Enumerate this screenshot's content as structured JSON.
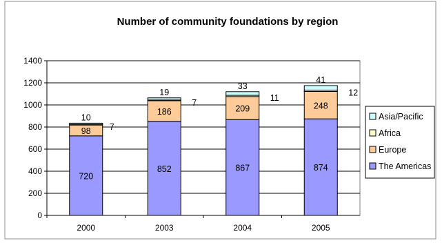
{
  "chart_data": {
    "type": "bar",
    "stacked": true,
    "title": "Number of community foundations by region",
    "xlabel": "",
    "ylabel": "",
    "categories": [
      "2000",
      "2003",
      "2004",
      "2005"
    ],
    "ylim": [
      0,
      1400
    ],
    "yticks": [
      0,
      200,
      400,
      600,
      800,
      1000,
      1200,
      1400
    ],
    "grid": "horizontal",
    "legend_position": "right",
    "series": [
      {
        "name": "The Americas",
        "color": "#9999ff",
        "values": [
          720,
          852,
          867,
          874
        ]
      },
      {
        "name": "Europe",
        "color": "#ffcc99",
        "values": [
          98,
          186,
          209,
          248
        ]
      },
      {
        "name": "Africa",
        "color": "#ffffcc",
        "values": [
          7,
          7,
          11,
          12
        ]
      },
      {
        "name": "Asia/Pacific",
        "color": "#ccffff",
        "values": [
          10,
          19,
          33,
          41
        ]
      }
    ],
    "colors": {
      "frame_fill": "#ffffff",
      "plot_fill": "#ffffff",
      "gridline": "#000000",
      "divider": "#000000"
    }
  }
}
